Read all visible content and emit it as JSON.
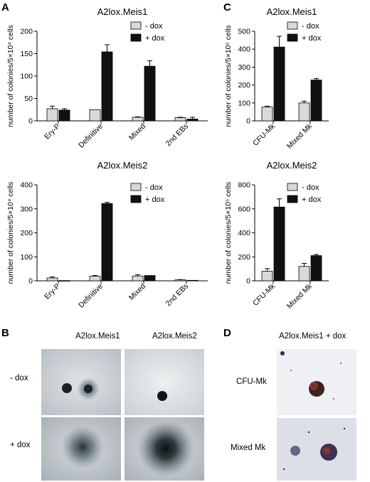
{
  "panels": {
    "A": "A",
    "B": "B",
    "C": "C",
    "D": "D"
  },
  "legend": {
    "minus_dox": "- dox",
    "plus_dox": "+ dox"
  },
  "colors": {
    "minus_dox": "#d9d9d9",
    "plus_dox": "#111111",
    "axis": "#000000"
  },
  "chart_data": [
    {
      "id": "A-top",
      "type": "bar",
      "title": "A2lox.Meis1",
      "ylabel": "number of colonies/5×10⁴ cells",
      "categories": [
        "Ery-P",
        "Definitive",
        "Mixed",
        "2nd EBs"
      ],
      "series": [
        {
          "name": "- dox",
          "values": [
            27,
            25,
            8,
            7
          ],
          "errors": [
            6,
            0,
            1,
            1
          ]
        },
        {
          "name": "+ dox",
          "values": [
            24,
            154,
            122,
            4
          ],
          "errors": [
            3,
            16,
            12,
            4
          ]
        }
      ],
      "ylim": [
        0,
        200
      ],
      "yticks": [
        "0",
        "50",
        "100",
        "150",
        "200"
      ],
      "legend_position": "top-right",
      "grid": false
    },
    {
      "id": "A-bottom",
      "type": "bar",
      "title": "A2lox.Meis2",
      "ylabel": "number of colonies/5×10⁴ cells",
      "categories": [
        "Ery-P",
        "Definitive",
        "Mixed",
        "2nd EBs"
      ],
      "series": [
        {
          "name": "- dox",
          "values": [
            12,
            19,
            20,
            4
          ],
          "errors": [
            4,
            3,
            5,
            1
          ]
        },
        {
          "name": "+ dox",
          "values": [
            1,
            322,
            22,
            2
          ],
          "errors": [
            0,
            5,
            0,
            0
          ]
        }
      ],
      "ylim": [
        0,
        400
      ],
      "yticks": [
        "0",
        "100",
        "200",
        "300",
        "400"
      ],
      "legend_position": "top-right",
      "grid": false
    },
    {
      "id": "C-top",
      "type": "bar",
      "title": "A2lox.Meis1",
      "ylabel": "number of colonies/5×10⁵ cells",
      "categories": [
        "CFU-Mk",
        "Mixed Mk"
      ],
      "series": [
        {
          "name": "- dox",
          "values": [
            77,
            100
          ],
          "errors": [
            5,
            10
          ]
        },
        {
          "name": "+ dox",
          "values": [
            412,
            228
          ],
          "errors": [
            60,
            8
          ]
        }
      ],
      "ylim": [
        0,
        500
      ],
      "yticks": [
        "0",
        "100",
        "200",
        "300",
        "400",
        "500"
      ],
      "legend_position": "top-right",
      "grid": false
    },
    {
      "id": "C-bottom",
      "type": "bar",
      "title": "A2lox.Meis2",
      "ylabel": "number of colonies/5×10⁵ cells",
      "categories": [
        "CFU-Mk",
        "Mixed Mk"
      ],
      "series": [
        {
          "name": "- dox",
          "values": [
            80,
            120
          ],
          "errors": [
            22,
            25
          ]
        },
        {
          "name": "+ dox",
          "values": [
            615,
            210
          ],
          "errors": [
            68,
            10
          ]
        }
      ],
      "ylim": [
        0,
        800
      ],
      "yticks": [
        "0",
        "200",
        "400",
        "600",
        "800"
      ],
      "legend_position": "top-right",
      "grid": false
    }
  ],
  "photos_B": {
    "col1": "A2lox.Meis1",
    "col2": "A2lox.Meis2",
    "row1": "- dox",
    "row2": "+ dox"
  },
  "photos_D": {
    "title": "A2lox.Meis1 + dox",
    "row1": "CFU-Mk",
    "row2": "Mixed Mk"
  }
}
